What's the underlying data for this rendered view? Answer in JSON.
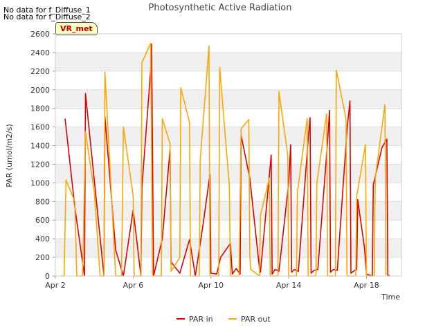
{
  "notes": [
    "No data for f_Diffuse_1",
    "No data for f_Diffuse_2"
  ],
  "badge": "VR_met",
  "colors": {
    "series1": "#dd0000",
    "series2": "#ffa500",
    "band": "#f0f0f0",
    "grid": "#dddddd"
  },
  "chart_data": {
    "type": "line",
    "title": "Photosynthetic Active Radiation",
    "xlabel": "Time",
    "ylabel": "PAR (umol/m2/s)",
    "xlim": [
      2.0,
      19.8
    ],
    "ylim": [
      0,
      2600
    ],
    "x_unit": "day of April",
    "xticks": [
      {
        "value": 2,
        "label": "Apr 2"
      },
      {
        "value": 6,
        "label": "Apr 6"
      },
      {
        "value": 10,
        "label": "Apr 10"
      },
      {
        "value": 14,
        "label": "Apr 14"
      },
      {
        "value": 18,
        "label": "Apr 18"
      }
    ],
    "yticks": [
      0,
      200,
      400,
      600,
      800,
      1000,
      1200,
      1400,
      1600,
      1800,
      2000,
      2200,
      2400,
      2600
    ],
    "legend_position": "bottom-center",
    "series": [
      {
        "name": "PAR in",
        "color": "#dd0000",
        "points": [
          [
            2.5,
            1690
          ],
          [
            3.0,
            740
          ],
          [
            3.5,
            0
          ],
          [
            3.55,
            1960
          ],
          [
            4.2,
            620
          ],
          [
            4.5,
            0
          ],
          [
            4.55,
            1710
          ],
          [
            5.1,
            280
          ],
          [
            5.5,
            0
          ],
          [
            6.0,
            710
          ],
          [
            6.4,
            0
          ],
          [
            6.45,
            950
          ],
          [
            6.9,
            2200
          ],
          [
            6.95,
            2490
          ],
          [
            7.05,
            0
          ],
          [
            7.5,
            400
          ],
          [
            7.9,
            1360
          ],
          [
            7.95,
            150
          ],
          [
            8.4,
            30
          ],
          [
            8.9,
            390
          ],
          [
            9.2,
            0
          ],
          [
            9.6,
            560
          ],
          [
            9.95,
            1090
          ],
          [
            10.0,
            30
          ],
          [
            10.3,
            20
          ],
          [
            10.5,
            200
          ],
          [
            11.0,
            350
          ],
          [
            11.1,
            20
          ],
          [
            11.3,
            80
          ],
          [
            11.5,
            20
          ],
          [
            11.55,
            1510
          ],
          [
            12.0,
            1050
          ],
          [
            12.5,
            80
          ],
          [
            12.55,
            40
          ],
          [
            13.1,
            1300
          ],
          [
            13.15,
            20
          ],
          [
            13.3,
            70
          ],
          [
            13.5,
            50
          ],
          [
            14.0,
            1000
          ],
          [
            14.1,
            1410
          ],
          [
            14.15,
            40
          ],
          [
            14.3,
            70
          ],
          [
            14.5,
            50
          ],
          [
            15.0,
            1470
          ],
          [
            15.1,
            1700
          ],
          [
            15.15,
            30
          ],
          [
            15.3,
            60
          ],
          [
            15.5,
            70
          ],
          [
            16.0,
            1450
          ],
          [
            16.1,
            1780
          ],
          [
            16.15,
            40
          ],
          [
            16.3,
            70
          ],
          [
            16.5,
            60
          ],
          [
            17.0,
            1570
          ],
          [
            17.15,
            1880
          ],
          [
            17.2,
            30
          ],
          [
            17.4,
            60
          ],
          [
            17.5,
            70
          ],
          [
            17.55,
            820
          ],
          [
            17.9,
            300
          ],
          [
            18.0,
            20
          ],
          [
            18.3,
            0
          ],
          [
            18.35,
            980
          ],
          [
            18.8,
            1380
          ],
          [
            19.05,
            1470
          ],
          [
            19.1,
            10
          ],
          [
            19.2,
            0
          ]
        ]
      },
      {
        "name": "PAR out",
        "color": "#ffa500",
        "points": [
          [
            2.3,
            0
          ],
          [
            2.45,
            0
          ],
          [
            2.55,
            1030
          ],
          [
            3.0,
            800
          ],
          [
            3.1,
            0
          ],
          [
            3.4,
            0
          ],
          [
            3.55,
            1550
          ],
          [
            4.0,
            900
          ],
          [
            4.3,
            0
          ],
          [
            4.5,
            0
          ],
          [
            4.55,
            2190
          ],
          [
            4.8,
            1200
          ],
          [
            5.1,
            0
          ],
          [
            5.4,
            0
          ],
          [
            5.5,
            1600
          ],
          [
            6.0,
            860
          ],
          [
            6.05,
            0
          ],
          [
            6.4,
            0
          ],
          [
            6.45,
            2290
          ],
          [
            6.9,
            2500
          ],
          [
            7.0,
            0
          ],
          [
            7.45,
            0
          ],
          [
            7.5,
            1690
          ],
          [
            7.9,
            1420
          ],
          [
            7.95,
            50
          ],
          [
            8.4,
            200
          ],
          [
            8.45,
            2020
          ],
          [
            8.9,
            1650
          ],
          [
            8.95,
            0
          ],
          [
            9.4,
            0
          ],
          [
            9.45,
            1250
          ],
          [
            9.9,
            2470
          ],
          [
            9.95,
            0
          ],
          [
            10.4,
            0
          ],
          [
            10.45,
            2240
          ],
          [
            10.95,
            960
          ],
          [
            11.0,
            0
          ],
          [
            11.3,
            0
          ],
          [
            11.45,
            0
          ],
          [
            11.55,
            1580
          ],
          [
            11.95,
            1680
          ],
          [
            12.0,
            230
          ],
          [
            12.05,
            70
          ],
          [
            12.5,
            0
          ],
          [
            12.55,
            650
          ],
          [
            13.0,
            1050
          ],
          [
            13.05,
            0
          ],
          [
            13.45,
            0
          ],
          [
            13.5,
            1980
          ],
          [
            13.95,
            1300
          ],
          [
            14.0,
            0
          ],
          [
            14.4,
            0
          ],
          [
            14.45,
            900
          ],
          [
            14.95,
            1690
          ],
          [
            15.0,
            0
          ],
          [
            15.4,
            0
          ],
          [
            15.45,
            1000
          ],
          [
            15.95,
            1740
          ],
          [
            16.0,
            0
          ],
          [
            16.4,
            0
          ],
          [
            16.45,
            2210
          ],
          [
            16.95,
            1690
          ],
          [
            17.0,
            0
          ],
          [
            17.45,
            0
          ],
          [
            17.5,
            860
          ],
          [
            17.95,
            1410
          ],
          [
            18.0,
            0
          ],
          [
            18.4,
            0
          ],
          [
            18.45,
            1050
          ],
          [
            18.95,
            1840
          ],
          [
            19.0,
            0
          ]
        ]
      }
    ]
  }
}
